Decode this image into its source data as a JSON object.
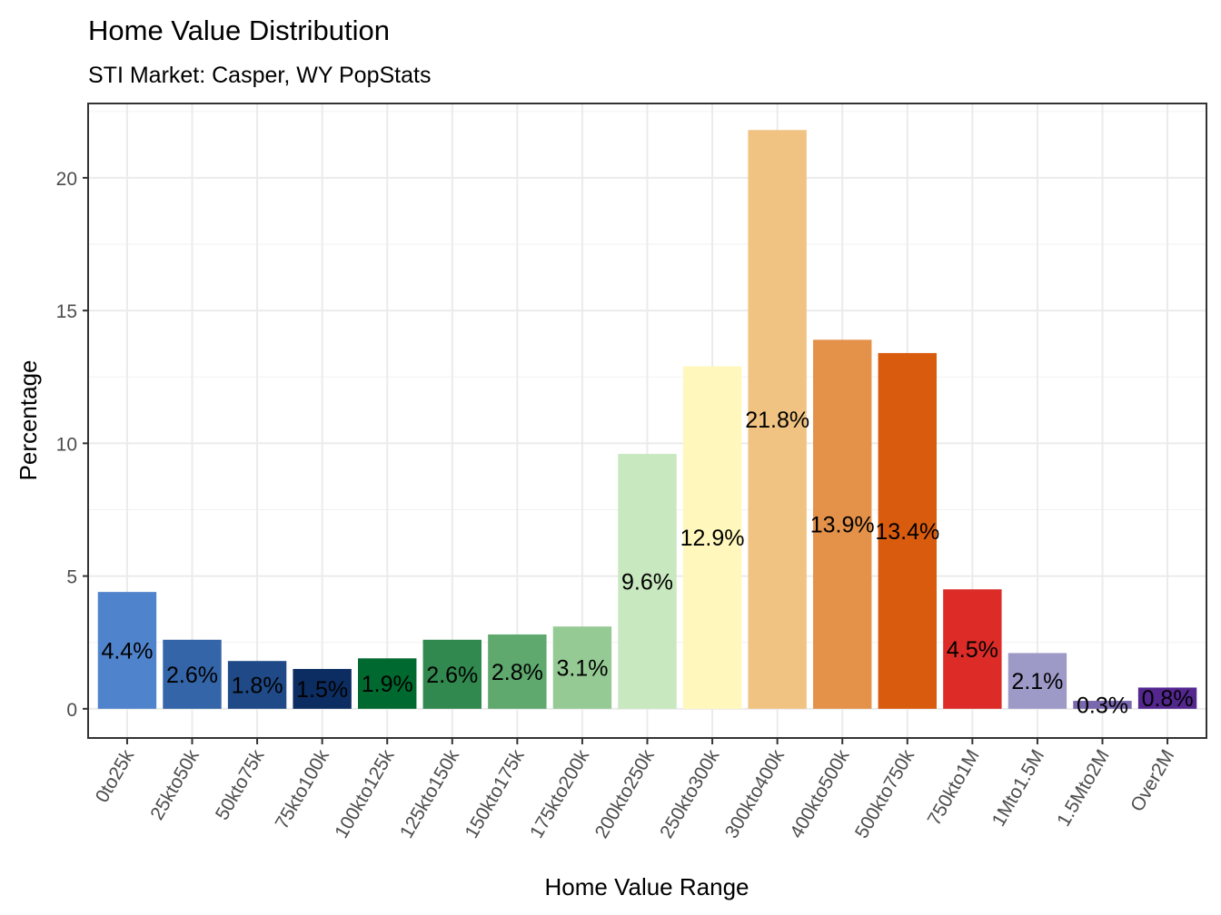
{
  "chart_data": {
    "type": "bar",
    "title": "Home Value Distribution",
    "subtitle": "STI Market: Casper, WY PopStats",
    "xlabel": "Home Value Range",
    "ylabel": "Percentage",
    "ylim": [
      -1.1,
      22.8
    ],
    "yticks": [
      0,
      5,
      10,
      15,
      20
    ],
    "grid": true,
    "legend": "none",
    "categories": [
      "0to25k",
      "25kto50k",
      "50kto75k",
      "75kto100k",
      "100kto125k",
      "125kto150k",
      "150kto175k",
      "175kto200k",
      "200kto250k",
      "250kto300k",
      "300kto400k",
      "400kto500k",
      "500kto750k",
      "750kto1M",
      "1Mto1.5M",
      "1.5Mto2M",
      "Over2M"
    ],
    "values": [
      4.4,
      2.6,
      1.8,
      1.5,
      1.9,
      2.6,
      2.8,
      3.1,
      9.6,
      12.9,
      21.8,
      13.9,
      13.4,
      4.5,
      2.1,
      0.3,
      0.8
    ],
    "labels": [
      "4.4%",
      "2.6%",
      "1.8%",
      "1.5%",
      "1.9%",
      "2.6%",
      "2.8%",
      "3.1%",
      "9.6%",
      "12.9%",
      "21.8%",
      "13.9%",
      "13.4%",
      "4.5%",
      "2.1%",
      "0.3%",
      "0.8%"
    ],
    "colors": [
      "#4F83CC",
      "#3465A8",
      "#1F4A87",
      "#0C2D61",
      "#00692F",
      "#31894F",
      "#5FA86E",
      "#96CA95",
      "#C8E8BF",
      "#FFF7BC",
      "#F0C382",
      "#E4914A",
      "#D95C0E",
      "#DD2C28",
      "#9E9AC8",
      "#7A68AF",
      "#54278F"
    ]
  }
}
